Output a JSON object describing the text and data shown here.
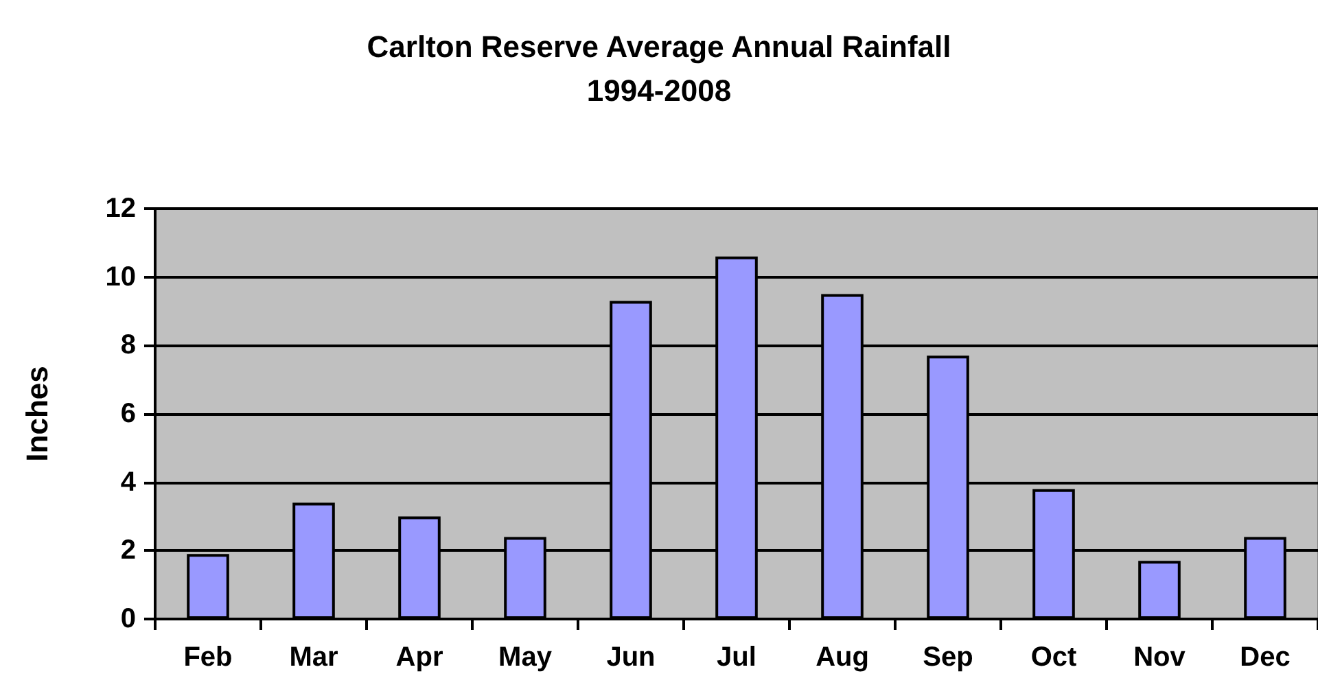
{
  "chart_data": {
    "type": "bar",
    "title": "Carlton Reserve Average Annual Rainfall",
    "subtitle": "1994-2008",
    "ylabel": "Inches",
    "categories": [
      "Feb",
      "Mar",
      "Apr",
      "May",
      "Jun",
      "Jul",
      "Aug",
      "Sep",
      "Oct",
      "Nov",
      "Dec"
    ],
    "values": [
      1.9,
      3.4,
      3.0,
      2.4,
      9.3,
      10.6,
      9.5,
      7.7,
      3.8,
      1.7,
      2.4
    ],
    "color": "#9999ff",
    "ylim": [
      0,
      12
    ],
    "yticks": [
      0,
      2,
      4,
      6,
      8,
      10,
      12
    ],
    "grid": "y"
  }
}
